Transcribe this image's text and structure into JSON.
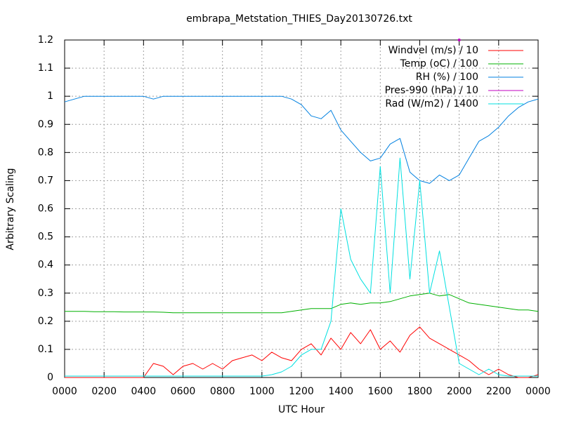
{
  "chart_data": {
    "type": "line",
    "title": "embrapa_Metstation_THIES_Day20130726.txt",
    "x_label": "UTC Hour",
    "y_label": "Arbitrary Scaling",
    "xlim": [
      0,
      24
    ],
    "ylim": [
      0,
      1.2
    ],
    "xticks": [
      {
        "value": 0,
        "label": "0000"
      },
      {
        "value": 2,
        "label": "0200"
      },
      {
        "value": 4,
        "label": "0400"
      },
      {
        "value": 6,
        "label": "0600"
      },
      {
        "value": 8,
        "label": "0800"
      },
      {
        "value": 10,
        "label": "1000"
      },
      {
        "value": 12,
        "label": "1200"
      },
      {
        "value": 14,
        "label": "1400"
      },
      {
        "value": 16,
        "label": "1600"
      },
      {
        "value": 18,
        "label": "1800"
      },
      {
        "value": 20,
        "label": "2000"
      },
      {
        "value": 22,
        "label": "2200"
      },
      {
        "value": 24,
        "label": "0000"
      }
    ],
    "yticks": [
      0,
      0.1,
      0.2,
      0.3,
      0.4,
      0.5,
      0.6,
      0.7,
      0.8,
      0.9,
      1,
      1.1,
      1.2
    ],
    "grid": true,
    "legend": "top-right",
    "x": [
      0,
      0.5,
      1,
      1.5,
      2,
      2.5,
      3,
      3.5,
      4,
      4.5,
      5,
      5.5,
      6,
      6.5,
      7,
      7.5,
      8,
      8.5,
      9,
      9.5,
      10,
      10.5,
      11,
      11.5,
      12,
      12.5,
      13,
      13.5,
      14,
      14.5,
      15,
      15.5,
      16,
      16.5,
      17,
      17.5,
      18,
      18.5,
      19,
      19.5,
      20,
      20.5,
      21,
      21.5,
      22,
      22.5,
      23,
      23.5,
      24
    ],
    "series": [
      {
        "name": "Windvel (m/s) / 10",
        "color": "#ff0000",
        "values": [
          0,
          0,
          0,
          0,
          0,
          0,
          0,
          0,
          0,
          0.05,
          0.04,
          0.01,
          0.04,
          0.05,
          0.03,
          0.05,
          0.03,
          0.06,
          0.07,
          0.08,
          0.06,
          0.09,
          0.07,
          0.06,
          0.1,
          0.12,
          0.08,
          0.14,
          0.1,
          0.16,
          0.12,
          0.17,
          0.1,
          0.13,
          0.09,
          0.15,
          0.18,
          0.14,
          0.12,
          0.1,
          0.08,
          0.06,
          0.03,
          0.01,
          0.03,
          0.01,
          0,
          0,
          0.01
        ]
      },
      {
        "name": "Temp (oC) / 100",
        "color": "#00b000",
        "values": [
          0.235,
          0.235,
          0.235,
          0.234,
          0.234,
          0.234,
          0.233,
          0.233,
          0.233,
          0.233,
          0.232,
          0.23,
          0.23,
          0.23,
          0.23,
          0.23,
          0.23,
          0.23,
          0.23,
          0.23,
          0.23,
          0.23,
          0.23,
          0.235,
          0.24,
          0.245,
          0.245,
          0.245,
          0.26,
          0.265,
          0.26,
          0.265,
          0.265,
          0.27,
          0.28,
          0.29,
          0.295,
          0.3,
          0.29,
          0.295,
          0.28,
          0.265,
          0.26,
          0.255,
          0.25,
          0.245,
          0.24,
          0.24,
          0.235
        ]
      },
      {
        "name": "RH (%) / 100",
        "color": "#0080e0",
        "values": [
          0.98,
          0.99,
          1,
          1,
          1,
          1,
          1,
          1,
          1,
          0.99,
          1,
          1,
          1,
          1,
          1,
          1,
          1,
          1,
          1,
          1,
          1,
          1,
          1,
          0.99,
          0.97,
          0.93,
          0.92,
          0.95,
          0.88,
          0.84,
          0.8,
          0.77,
          0.78,
          0.83,
          0.85,
          0.73,
          0.7,
          0.69,
          0.72,
          0.7,
          0.72,
          0.78,
          0.84,
          0.86,
          0.89,
          0.93,
          0.96,
          0.98,
          0.99
        ]
      },
      {
        "name": "Pres-990 (hPa) / 10",
        "color": "#c000c0",
        "values": [
          null,
          null,
          null,
          null,
          null,
          null,
          null,
          null,
          null,
          null,
          null,
          null,
          null,
          null,
          null,
          null,
          null,
          null,
          null,
          null,
          null,
          null,
          null,
          null,
          null,
          null,
          null,
          null,
          null,
          null,
          null,
          null,
          null,
          null,
          null,
          null,
          null,
          null,
          null,
          null,
          1.2,
          null,
          null,
          null,
          null,
          null,
          null,
          null,
          null
        ]
      },
      {
        "name": "Rad (W/m2) / 1400",
        "color": "#00e0e0",
        "values": [
          0.005,
          0.005,
          0.005,
          0.005,
          0.005,
          0.005,
          0.005,
          0.005,
          0.005,
          0.005,
          0.005,
          0.005,
          0.005,
          0.005,
          0.005,
          0.005,
          0.005,
          0.005,
          0.005,
          0.005,
          0.005,
          0.01,
          0.02,
          0.04,
          0.08,
          0.1,
          0.1,
          0.2,
          0.6,
          0.42,
          0.35,
          0.3,
          0.75,
          0.3,
          0.78,
          0.35,
          0.7,
          0.3,
          0.45,
          0.25,
          0.05,
          0.03,
          0.01,
          0.03,
          0.01,
          0.005,
          0.005,
          0.005,
          0.005
        ]
      }
    ]
  }
}
